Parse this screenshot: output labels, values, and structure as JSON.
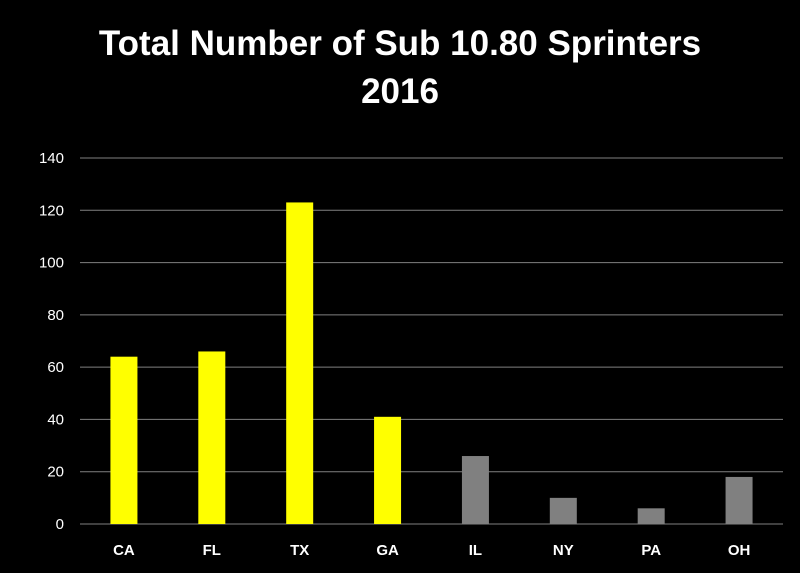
{
  "chart_data": {
    "type": "bar",
    "title_lines": [
      "Total Number of Sub 10.80 Sprinters",
      "2016"
    ],
    "categories": [
      "CA",
      "FL",
      "TX",
      "GA",
      "IL",
      "NY",
      "PA",
      "OH"
    ],
    "values": [
      64,
      66,
      123,
      41,
      26,
      10,
      6,
      18
    ],
    "bar_colors": [
      "#ffff00",
      "#ffff00",
      "#ffff00",
      "#ffff00",
      "#808080",
      "#808080",
      "#808080",
      "#808080"
    ],
    "ylim": [
      0,
      140
    ],
    "yticks": [
      0,
      20,
      40,
      60,
      80,
      100,
      120,
      140
    ],
    "xlabel": "",
    "ylabel": "",
    "grid": true,
    "legend": "none",
    "background_color": "#000000",
    "text_color": "#ffffff",
    "grid_color": "#808080"
  }
}
